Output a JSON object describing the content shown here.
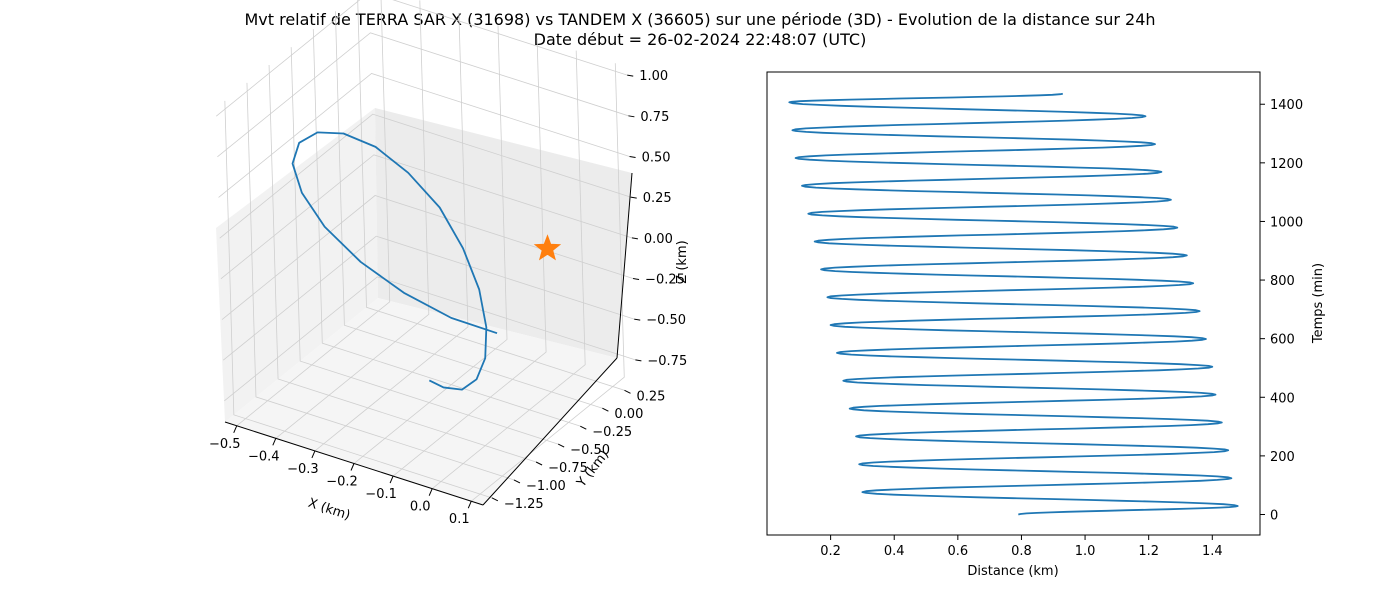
{
  "figure": {
    "title_line1": "Mvt relatif de TERRA SAR X (31698) vs TANDEM X (36605) sur une période (3D) - Evolution de la distance sur 24h",
    "title_line2": "Date début = 26-02-2024 22:48:07 (UTC)"
  },
  "colors": {
    "series": "#1f77b4",
    "marker": "#ff7f0e"
  },
  "chart_data": [
    {
      "type": "line",
      "projection": "3d",
      "xlabel": "X (km)",
      "ylabel": "Y (km)",
      "zlabel": "Z (km)",
      "xlim": [
        -0.53,
        0.13
      ],
      "ylim": [
        -1.35,
        0.38
      ],
      "zlim": [
        -0.88,
        1.05
      ],
      "x_ticks": [
        "−0.5",
        "−0.4",
        "−0.3",
        "−0.2",
        "−0.1",
        "0.0",
        "0.1"
      ],
      "y_ticks": [
        "0.25",
        "0.00",
        "−0.25",
        "−0.50",
        "−0.75",
        "−1.00",
        "−1.25"
      ],
      "z_ticks": [
        "1.00",
        "0.75",
        "0.50",
        "0.25",
        "0.00",
        "−0.25",
        "−0.50",
        "−0.75"
      ],
      "grid": true,
      "series": [
        {
          "kind": "relative-orbit-line",
          "x": [
            -0.222,
            -0.315,
            -0.403,
            -0.472,
            -0.519,
            -0.53,
            -0.508,
            -0.448,
            -0.362,
            -0.263,
            -0.156,
            -0.053,
            0.036,
            0.096,
            0.124,
            0.117,
            0.08,
            0.017,
            -0.065,
            -0.159,
            -0.222
          ],
          "y": [
            0.366,
            0.262,
            0.124,
            -0.048,
            -0.234,
            -0.428,
            -0.616,
            -0.793,
            -0.955,
            -1.092,
            -1.2,
            -1.288,
            -1.332,
            -1.344,
            -1.298,
            -1.201,
            -1.065,
            -0.898,
            -0.711,
            -0.512,
            -0.397
          ],
          "z": [
            -0.852,
            -0.784,
            -0.637,
            -0.425,
            -0.163,
            0.123,
            0.402,
            0.654,
            0.856,
            0.986,
            1.034,
            0.993,
            0.868,
            0.669,
            0.417,
            0.136,
            -0.142,
            -0.394,
            -0.603,
            -0.75,
            -0.806
          ]
        },
        {
          "kind": "start-marker",
          "marker": "star",
          "x": [
            0.0
          ],
          "y": [
            0.0
          ],
          "z": [
            0.0
          ]
        }
      ]
    },
    {
      "type": "line",
      "xlabel": "Distance (km)",
      "ylabel": "Temps (min)",
      "xlim": [
        0.0,
        1.55
      ],
      "ylim": [
        -70,
        1510
      ],
      "x_ticks": [
        0.2,
        0.4,
        0.6,
        0.8,
        1.0,
        1.2,
        1.4
      ],
      "y_ticks": [
        0,
        200,
        400,
        600,
        800,
        1000,
        1200,
        1400
      ],
      "grid": false,
      "yaxis_side": "right",
      "series": [
        {
          "kind": "distance-vs-time",
          "oscillation_period_min": 95,
          "points": [
            [
              0.79,
              0
            ],
            [
              1.48,
              29
            ],
            [
              0.3,
              76.5
            ],
            [
              1.46,
              124
            ],
            [
              0.29,
              171.5
            ],
            [
              1.45,
              219
            ],
            [
              0.28,
              266.5
            ],
            [
              1.43,
              314
            ],
            [
              0.26,
              361.5
            ],
            [
              1.41,
              409
            ],
            [
              0.24,
              456.5
            ],
            [
              1.4,
              504
            ],
            [
              0.22,
              551.5
            ],
            [
              1.38,
              599
            ],
            [
              0.2,
              646.5
            ],
            [
              1.36,
              694
            ],
            [
              0.19,
              741.5
            ],
            [
              1.34,
              789
            ],
            [
              0.17,
              836.5
            ],
            [
              1.32,
              884
            ],
            [
              0.15,
              931.5
            ],
            [
              1.29,
              979
            ],
            [
              0.13,
              1026.5
            ],
            [
              1.27,
              1074
            ],
            [
              0.11,
              1121.5
            ],
            [
              1.24,
              1169
            ],
            [
              0.09,
              1216.5
            ],
            [
              1.22,
              1264
            ],
            [
              0.08,
              1311.5
            ],
            [
              1.19,
              1359
            ],
            [
              0.07,
              1406.5
            ],
            [
              0.93,
              1436
            ]
          ]
        }
      ]
    }
  ]
}
